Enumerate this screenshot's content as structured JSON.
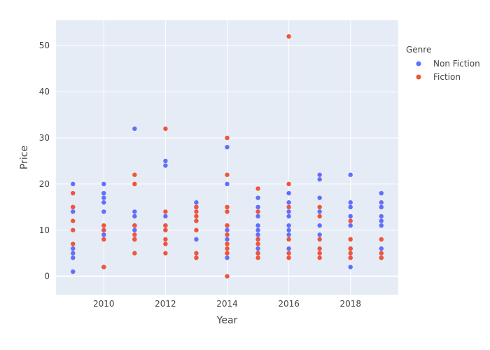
{
  "chart_data": {
    "type": "scatter",
    "xlabel": "Year",
    "ylabel": "Price",
    "xlim": [
      2008.45,
      2019.55
    ],
    "ylim": [
      -4,
      55.5
    ],
    "x_ticks": [
      2010,
      2012,
      2014,
      2016,
      2018
    ],
    "y_ticks": [
      0,
      10,
      20,
      30,
      40,
      50
    ],
    "grid": true,
    "legend_title": "Genre",
    "legend_position": "top-right",
    "series": [
      {
        "name": "Non Fiction",
        "color": "#636efa",
        "points": [
          [
            2009,
            20
          ],
          [
            2009,
            15
          ],
          [
            2009,
            14
          ],
          [
            2009,
            6
          ],
          [
            2009,
            5
          ],
          [
            2009,
            4
          ],
          [
            2009,
            1
          ],
          [
            2010,
            20
          ],
          [
            2010,
            18
          ],
          [
            2010,
            17
          ],
          [
            2010,
            16
          ],
          [
            2010,
            14
          ],
          [
            2010,
            10
          ],
          [
            2010,
            9
          ],
          [
            2010,
            2
          ],
          [
            2011,
            32
          ],
          [
            2011,
            14
          ],
          [
            2011,
            13
          ],
          [
            2011,
            11
          ],
          [
            2011,
            10
          ],
          [
            2011,
            8
          ],
          [
            2012,
            25
          ],
          [
            2012,
            24
          ],
          [
            2012,
            13
          ],
          [
            2012,
            11
          ],
          [
            2012,
            10
          ],
          [
            2013,
            16
          ],
          [
            2013,
            15
          ],
          [
            2013,
            8
          ],
          [
            2013,
            4
          ],
          [
            2014,
            28
          ],
          [
            2014,
            20
          ],
          [
            2014,
            11
          ],
          [
            2014,
            10
          ],
          [
            2014,
            8
          ],
          [
            2014,
            5
          ],
          [
            2014,
            4
          ],
          [
            2015,
            17
          ],
          [
            2015,
            15
          ],
          [
            2015,
            13
          ],
          [
            2015,
            11
          ],
          [
            2015,
            10
          ],
          [
            2015,
            9
          ],
          [
            2015,
            8
          ],
          [
            2015,
            6
          ],
          [
            2015,
            5
          ],
          [
            2016,
            18
          ],
          [
            2016,
            16
          ],
          [
            2016,
            14
          ],
          [
            2016,
            13
          ],
          [
            2016,
            11
          ],
          [
            2016,
            10
          ],
          [
            2016,
            9
          ],
          [
            2016,
            6
          ],
          [
            2017,
            22
          ],
          [
            2017,
            21
          ],
          [
            2017,
            17
          ],
          [
            2017,
            14
          ],
          [
            2017,
            11
          ],
          [
            2017,
            9
          ],
          [
            2018,
            22
          ],
          [
            2018,
            16
          ],
          [
            2018,
            15
          ],
          [
            2018,
            13
          ],
          [
            2018,
            11
          ],
          [
            2018,
            6
          ],
          [
            2018,
            4
          ],
          [
            2018,
            2
          ],
          [
            2019,
            18
          ],
          [
            2019,
            16
          ],
          [
            2019,
            15
          ],
          [
            2019,
            13
          ],
          [
            2019,
            12
          ],
          [
            2019,
            11
          ],
          [
            2019,
            6
          ],
          [
            2019,
            4
          ]
        ]
      },
      {
        "name": "Fiction",
        "color": "#ef553b",
        "points": [
          [
            2009,
            18
          ],
          [
            2009,
            15
          ],
          [
            2009,
            12
          ],
          [
            2009,
            10
          ],
          [
            2009,
            7
          ],
          [
            2010,
            11
          ],
          [
            2010,
            10
          ],
          [
            2010,
            8
          ],
          [
            2010,
            2
          ],
          [
            2011,
            22
          ],
          [
            2011,
            20
          ],
          [
            2011,
            11
          ],
          [
            2011,
            9
          ],
          [
            2011,
            8
          ],
          [
            2011,
            5
          ],
          [
            2012,
            32
          ],
          [
            2012,
            14
          ],
          [
            2012,
            11
          ],
          [
            2012,
            10
          ],
          [
            2012,
            8
          ],
          [
            2012,
            7
          ],
          [
            2012,
            5
          ],
          [
            2013,
            15
          ],
          [
            2013,
            14
          ],
          [
            2013,
            13
          ],
          [
            2013,
            12
          ],
          [
            2013,
            10
          ],
          [
            2013,
            5
          ],
          [
            2013,
            4
          ],
          [
            2014,
            30
          ],
          [
            2014,
            22
          ],
          [
            2014,
            15
          ],
          [
            2014,
            14
          ],
          [
            2014,
            11
          ],
          [
            2014,
            9
          ],
          [
            2014,
            7
          ],
          [
            2014,
            6
          ],
          [
            2014,
            5
          ],
          [
            2014,
            0
          ],
          [
            2015,
            19
          ],
          [
            2015,
            14
          ],
          [
            2015,
            8
          ],
          [
            2015,
            7
          ],
          [
            2015,
            5
          ],
          [
            2015,
            4
          ],
          [
            2016,
            52
          ],
          [
            2016,
            20
          ],
          [
            2016,
            15
          ],
          [
            2016,
            8
          ],
          [
            2016,
            5
          ],
          [
            2016,
            4
          ],
          [
            2017,
            15
          ],
          [
            2017,
            13
          ],
          [
            2017,
            8
          ],
          [
            2017,
            6
          ],
          [
            2017,
            5
          ],
          [
            2017,
            4
          ],
          [
            2018,
            12
          ],
          [
            2018,
            8
          ],
          [
            2018,
            6
          ],
          [
            2018,
            5
          ],
          [
            2018,
            4
          ],
          [
            2019,
            8
          ],
          [
            2019,
            5
          ],
          [
            2019,
            4
          ]
        ]
      }
    ]
  }
}
